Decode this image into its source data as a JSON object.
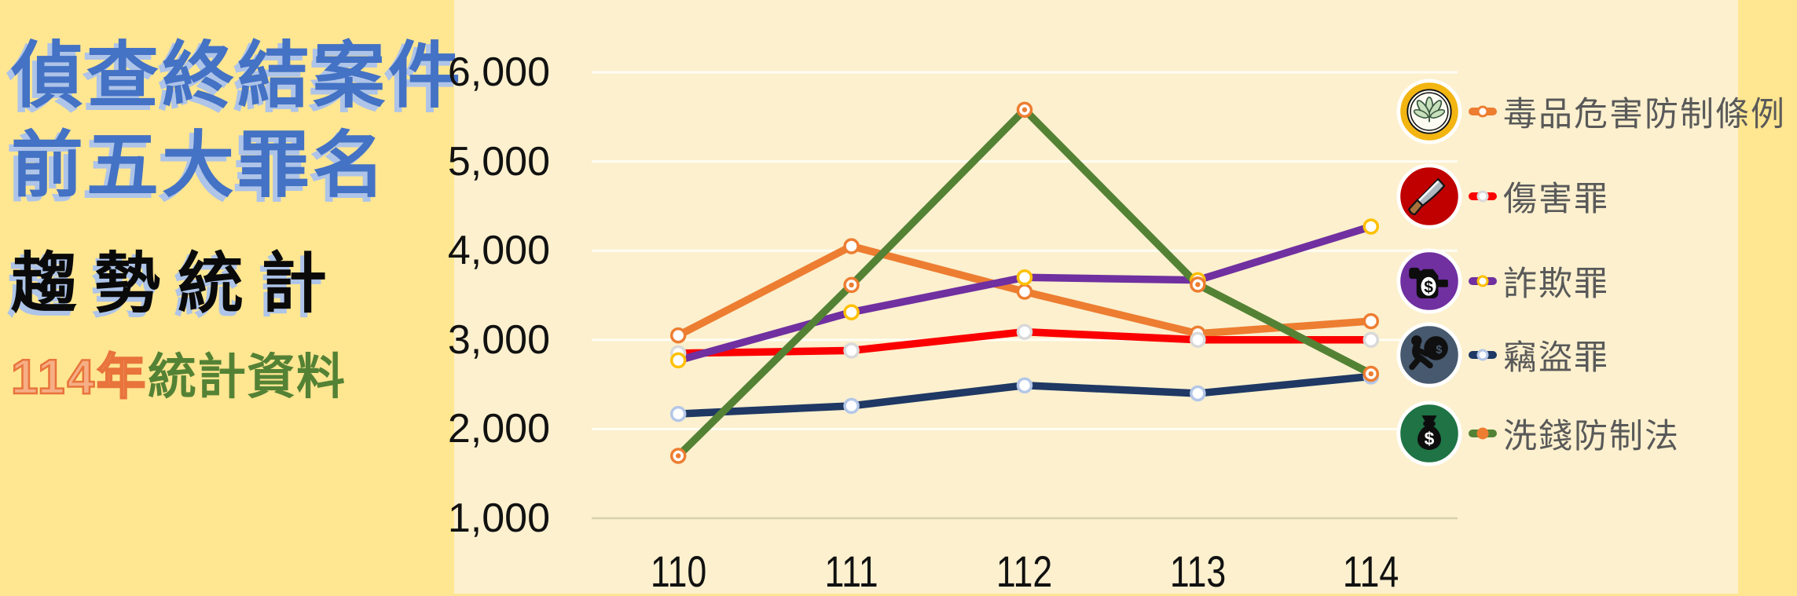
{
  "title": {
    "line1": "偵查終結案件",
    "line2": "前五大罪名",
    "line3": "趨勢統計",
    "line4_highlight": "114年",
    "line4_rest": "統計資料"
  },
  "colors": {
    "side_background": "#FFE691",
    "chart_background": "#FCF0CE",
    "title_blue": "#4472C4",
    "title_shadow": "#AEC4E8",
    "highlight_orange_fill": "#F6AE85",
    "highlight_orange_stroke": "#E8743B",
    "subtitle_green": "#548235",
    "legend_text": "#595959",
    "gridline": "#FFFDF4",
    "axis_line": "#D8CFAE"
  },
  "chart_data": {
    "type": "line",
    "title": "",
    "xlabel": "",
    "ylabel": "",
    "x": [
      "110",
      "111",
      "112",
      "113",
      "114"
    ],
    "ylim": [
      1000,
      6000
    ],
    "ytick_step": 1000,
    "yticks_labels": [
      "1,000",
      "2,000",
      "3,000",
      "4,000",
      "5,000",
      "6,000"
    ],
    "grid": true,
    "legend_position": "right",
    "series": [
      {
        "name": "毒品危害防制條例",
        "icon": "drug-prevention-icon",
        "color": "#ED7D31",
        "marker_ring": "#ED7D31",
        "marker_core": "#FFFFFF",
        "values": [
          3050,
          4050,
          3540,
          3070,
          3210
        ]
      },
      {
        "name": "傷害罪",
        "icon": "knife-icon",
        "color": "#FB0000",
        "marker_ring": "#D9D9D9",
        "marker_core": "#FFFFFF",
        "values": [
          2850,
          2880,
          3090,
          3000,
          3000
        ]
      },
      {
        "name": "詐欺罪",
        "icon": "fraud-icon",
        "color": "#7030A0",
        "marker_ring": "#FFC000",
        "marker_core": "#FFFFFF",
        "values": [
          2770,
          3310,
          3700,
          3670,
          4270
        ]
      },
      {
        "name": "竊盜罪",
        "icon": "thief-icon",
        "color": "#1F3864",
        "marker_ring": "#B4C7E7",
        "marker_core": "#FFFFFF",
        "values": [
          2170,
          2260,
          2490,
          2400,
          2590
        ]
      },
      {
        "name": "洗錢防制法",
        "icon": "money-bag-icon",
        "color": "#548235",
        "marker_ring": "#ED7D31",
        "marker_core": "#ED7D31",
        "values": [
          1700,
          3615,
          5580,
          3620,
          2620
        ]
      }
    ]
  }
}
